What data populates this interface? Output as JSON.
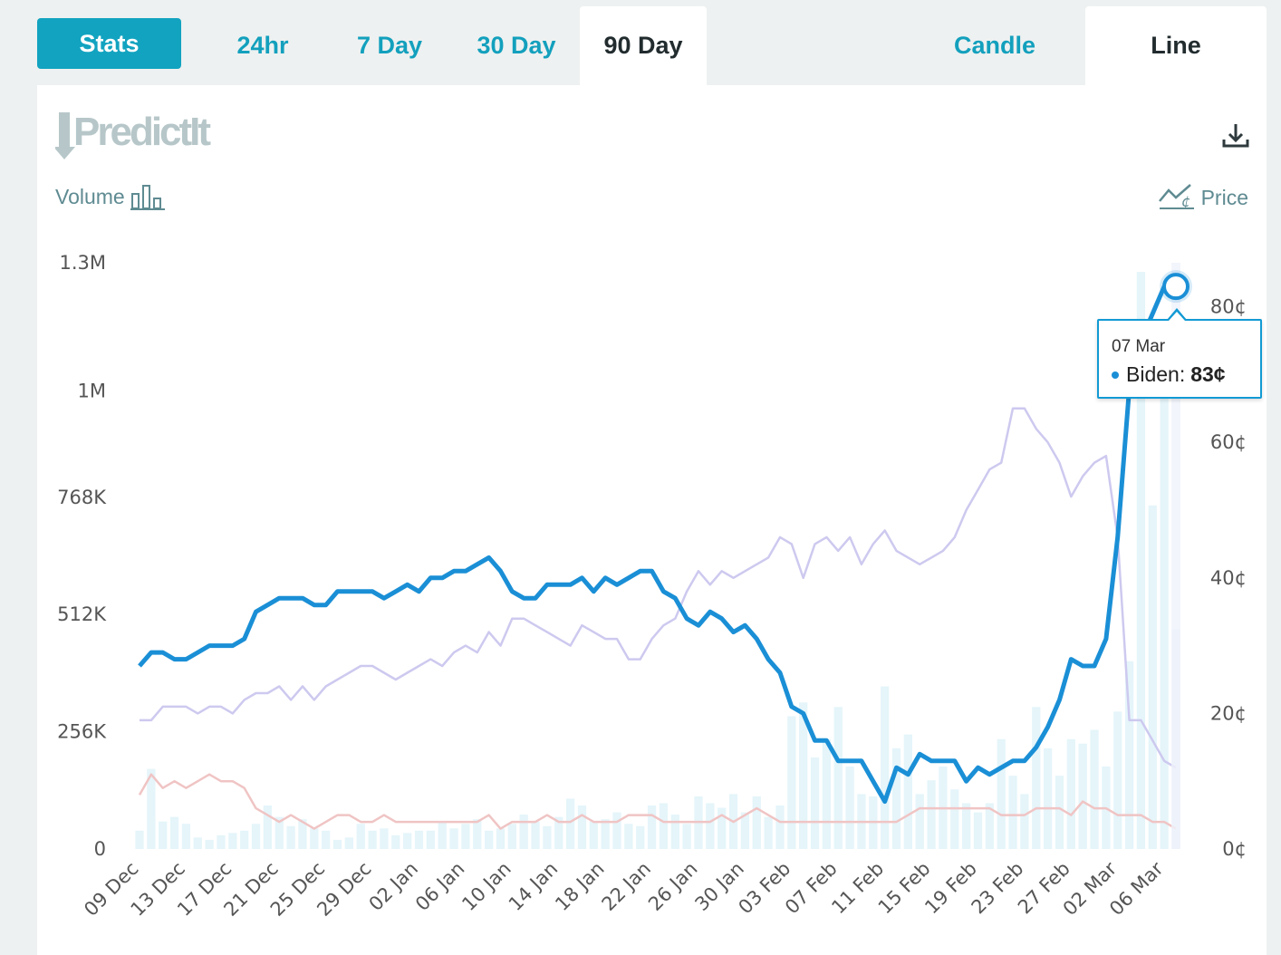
{
  "tabs": {
    "stats": "Stats",
    "ranges": [
      "24hr",
      "7 Day",
      "30 Day",
      "90 Day"
    ],
    "active_range": "90 Day",
    "chart_types": [
      "Candle",
      "Line"
    ],
    "active_chart_type": "Line"
  },
  "brand": {
    "logo_text": "PredictIt"
  },
  "labels": {
    "volume": "Volume",
    "price": "Price"
  },
  "tooltip": {
    "date": "07 Mar",
    "series": "Biden:",
    "value": "83¢"
  },
  "colors": {
    "accent": "#12a3c0",
    "biden": "#1a8fd6",
    "series_lavender": "#cdc9ef",
    "series_pink": "#f0c4c4",
    "volume_bars": "#e5f5fa"
  },
  "chart_data": {
    "type": "line",
    "x": [
      "09 Dec",
      "10 Dec",
      "11 Dec",
      "12 Dec",
      "13 Dec",
      "14 Dec",
      "15 Dec",
      "16 Dec",
      "17 Dec",
      "18 Dec",
      "19 Dec",
      "20 Dec",
      "21 Dec",
      "22 Dec",
      "23 Dec",
      "24 Dec",
      "25 Dec",
      "26 Dec",
      "27 Dec",
      "28 Dec",
      "29 Dec",
      "30 Dec",
      "31 Dec",
      "01 Jan",
      "02 Jan",
      "03 Jan",
      "04 Jan",
      "05 Jan",
      "06 Jan",
      "07 Jan",
      "08 Jan",
      "09 Jan",
      "10 Jan",
      "11 Jan",
      "12 Jan",
      "13 Jan",
      "14 Jan",
      "15 Jan",
      "16 Jan",
      "17 Jan",
      "18 Jan",
      "19 Jan",
      "20 Jan",
      "21 Jan",
      "22 Jan",
      "23 Jan",
      "24 Jan",
      "25 Jan",
      "26 Jan",
      "27 Jan",
      "28 Jan",
      "29 Jan",
      "30 Jan",
      "31 Jan",
      "01 Feb",
      "02 Feb",
      "03 Feb",
      "04 Feb",
      "05 Feb",
      "06 Feb",
      "07 Feb",
      "08 Feb",
      "09 Feb",
      "10 Feb",
      "11 Feb",
      "12 Feb",
      "13 Feb",
      "14 Feb",
      "15 Feb",
      "16 Feb",
      "17 Feb",
      "18 Feb",
      "19 Feb",
      "20 Feb",
      "21 Feb",
      "22 Feb",
      "23 Feb",
      "24 Feb",
      "25 Feb",
      "26 Feb",
      "27 Feb",
      "28 Feb",
      "29 Feb",
      "01 Mar",
      "02 Mar",
      "03 Mar",
      "04 Mar",
      "05 Mar",
      "06 Mar",
      "07 Mar"
    ],
    "x_tick_labels": [
      "09 Dec",
      "13 Dec",
      "17 Dec",
      "21 Dec",
      "25 Dec",
      "29 Dec",
      "02 Jan",
      "06 Jan",
      "10 Jan",
      "14 Jan",
      "18 Jan",
      "22 Jan",
      "26 Jan",
      "30 Jan",
      "03 Feb",
      "07 Feb",
      "11 Feb",
      "15 Feb",
      "19 Feb",
      "23 Feb",
      "27 Feb",
      "02 Mar",
      "06 Mar"
    ],
    "y_left": {
      "label": "Volume",
      "ticks": [
        "0",
        "256K",
        "512K",
        "768K",
        "1M",
        "1.3M"
      ],
      "tick_values": [
        0,
        256000,
        512000,
        768000,
        1000000,
        1280000
      ],
      "range": [
        0,
        1280000
      ]
    },
    "y_right": {
      "label": "Price",
      "ticks": [
        "0¢",
        "20¢",
        "40¢",
        "60¢",
        "80¢"
      ],
      "tick_values": [
        0,
        20,
        40,
        60,
        80
      ],
      "range": [
        0,
        86.5
      ]
    },
    "series": [
      {
        "name": "Biden",
        "axis": "right",
        "values": [
          27,
          29,
          29,
          28,
          28,
          29,
          30,
          30,
          30,
          31,
          35,
          36,
          37,
          37,
          37,
          36,
          36,
          38,
          38,
          38,
          38,
          37,
          38,
          39,
          38,
          40,
          40,
          41,
          41,
          42,
          43,
          41,
          38,
          37,
          37,
          39,
          39,
          39,
          40,
          38,
          40,
          39,
          40,
          41,
          41,
          38,
          37,
          34,
          33,
          35,
          34,
          32,
          33,
          31,
          28,
          26,
          21,
          20,
          16,
          16,
          13,
          13,
          13,
          10,
          7,
          12,
          11,
          14,
          13,
          13,
          13,
          10,
          12,
          11,
          12,
          13,
          13,
          15,
          18,
          22,
          28,
          27,
          27,
          31,
          46,
          68,
          75,
          79,
          83,
          83
        ]
      },
      {
        "axis": "right",
        "values": [
          19,
          19,
          21,
          21,
          21,
          20,
          21,
          21,
          20,
          22,
          23,
          23,
          24,
          22,
          24,
          22,
          24,
          25,
          26,
          27,
          27,
          26,
          25,
          26,
          27,
          28,
          27,
          29,
          30,
          29,
          32,
          30,
          34,
          34,
          33,
          32,
          31,
          30,
          33,
          32,
          31,
          31,
          28,
          28,
          31,
          33,
          34,
          38,
          41,
          39,
          41,
          40,
          41,
          42,
          43,
          46,
          45,
          40,
          45,
          46,
          44,
          46,
          42,
          45,
          47,
          44,
          43,
          42,
          43,
          44,
          46,
          50,
          53,
          56,
          57,
          65,
          65,
          62,
          60,
          57,
          52,
          55,
          57,
          58,
          46,
          19,
          19,
          16,
          13,
          12
        ]
      },
      {
        "axis": "right",
        "values": [
          8,
          11,
          9,
          10,
          9,
          10,
          11,
          10,
          10,
          9,
          6,
          5,
          4,
          5,
          4,
          3,
          4,
          5,
          5,
          4,
          4,
          5,
          4,
          4,
          4,
          4,
          4,
          4,
          4,
          4,
          5,
          3,
          4,
          4,
          4,
          5,
          4,
          4,
          5,
          4,
          4,
          4,
          5,
          5,
          5,
          4,
          4,
          4,
          4,
          4,
          5,
          4,
          5,
          6,
          5,
          4,
          4,
          4,
          4,
          4,
          4,
          4,
          4,
          4,
          4,
          4,
          5,
          6,
          6,
          6,
          6,
          6,
          6,
          6,
          5,
          5,
          5,
          6,
          6,
          6,
          5,
          7,
          6,
          6,
          5,
          5,
          5,
          4,
          4,
          3
        ]
      },
      {
        "name": "Volume",
        "axis": "left",
        "type": "bar",
        "values": [
          40000,
          175000,
          60000,
          70000,
          55000,
          25000,
          20000,
          30000,
          35000,
          40000,
          55000,
          95000,
          70000,
          50000,
          65000,
          45000,
          40000,
          20000,
          25000,
          55000,
          40000,
          45000,
          30000,
          35000,
          40000,
          40000,
          60000,
          45000,
          55000,
          65000,
          40000,
          45000,
          55000,
          75000,
          60000,
          50000,
          70000,
          110000,
          95000,
          60000,
          65000,
          80000,
          55000,
          50000,
          95000,
          100000,
          75000,
          55000,
          115000,
          100000,
          90000,
          120000,
          80000,
          115000,
          70000,
          95000,
          290000,
          320000,
          200000,
          240000,
          310000,
          180000,
          120000,
          115000,
          355000,
          220000,
          250000,
          120000,
          150000,
          180000,
          130000,
          100000,
          80000,
          100000,
          240000,
          160000,
          120000,
          310000,
          220000,
          160000,
          240000,
          230000,
          260000,
          180000,
          300000,
          410000,
          1260000,
          750000,
          1060000,
          480000
        ]
      }
    ]
  }
}
